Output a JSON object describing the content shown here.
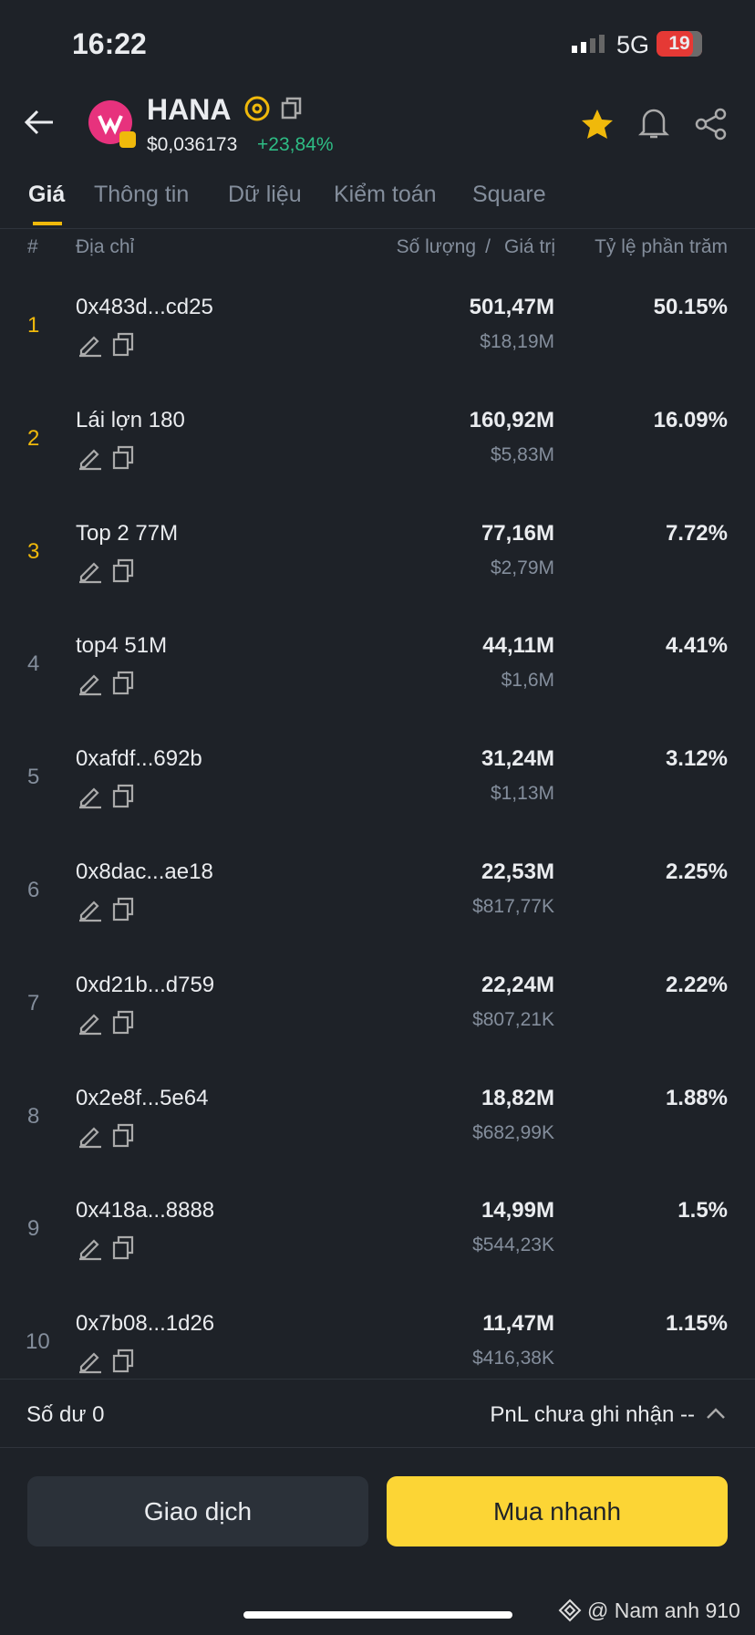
{
  "status_bar": {
    "time": "16:22",
    "network": "5G",
    "battery": "19"
  },
  "header": {
    "token": "HANA",
    "price": "$0,036173",
    "change": "+23,84%"
  },
  "tabs": [
    "Giá",
    "Thông tin",
    "Dữ liệu",
    "Kiểm toán",
    "Square"
  ],
  "table": {
    "columns": {
      "rank": "#",
      "address": "Địa chỉ",
      "amount": "Số lượng",
      "separator": "/",
      "value": "Giá trị",
      "percent": "Tỷ lệ phần trăm"
    },
    "rows": [
      {
        "rank": "1",
        "address": "0x483d...cd25",
        "amount": "501,47M",
        "value": "$18,19M",
        "percent": "50.15%"
      },
      {
        "rank": "2",
        "address": "Lái lợn 180",
        "amount": "160,92M",
        "value": "$5,83M",
        "percent": "16.09%"
      },
      {
        "rank": "3",
        "address": "Top 2 77M",
        "amount": "77,16M",
        "value": "$2,79M",
        "percent": "7.72%"
      },
      {
        "rank": "4",
        "address": "top4 51M",
        "amount": "44,11M",
        "value": "$1,6M",
        "percent": "4.41%"
      },
      {
        "rank": "5",
        "address": "0xafdf...692b",
        "amount": "31,24M",
        "value": "$1,13M",
        "percent": "3.12%"
      },
      {
        "rank": "6",
        "address": "0x8dac...ae18",
        "amount": "22,53M",
        "value": "$817,77K",
        "percent": "2.25%"
      },
      {
        "rank": "7",
        "address": "0xd21b...d759",
        "amount": "22,24M",
        "value": "$807,21K",
        "percent": "2.22%"
      },
      {
        "rank": "8",
        "address": "0x2e8f...5e64",
        "amount": "18,82M",
        "value": "$682,99K",
        "percent": "1.88%"
      },
      {
        "rank": "9",
        "address": "0x418a...8888",
        "amount": "14,99M",
        "value": "$544,23K",
        "percent": "1.5%"
      },
      {
        "rank": "10",
        "address": "0x7b08...1d26",
        "amount": "11,47M",
        "value": "$416,38K",
        "percent": "1.15%"
      }
    ]
  },
  "footer": {
    "balance": "Số dư 0",
    "pnl": "PnL chưa ghi nhận --"
  },
  "buttons": {
    "trade": "Giao dịch",
    "quick_buy": "Mua nhanh"
  },
  "watermark": "@ Nam anh 910"
}
